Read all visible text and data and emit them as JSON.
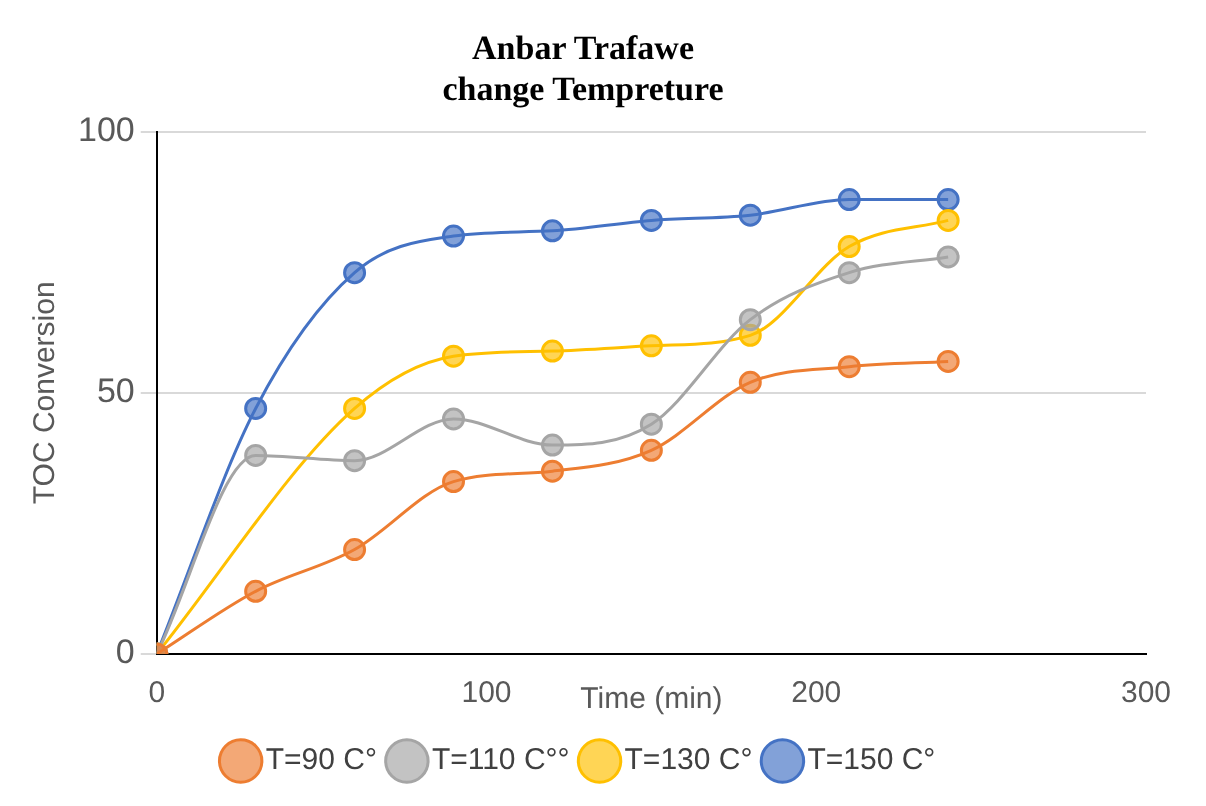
{
  "chart_data": {
    "type": "line",
    "title": "Anbar Trafawe\nchange Tempreture",
    "xlabel": "Time (min)",
    "ylabel": "TOC Conversion",
    "x": [
      0,
      30,
      60,
      90,
      120,
      150,
      180,
      210,
      240
    ],
    "xlim": [
      0,
      300
    ],
    "xticks": [
      0,
      100,
      200,
      300
    ],
    "ylim": [
      0,
      100
    ],
    "yticks": [
      0,
      50,
      100
    ],
    "grid": "y",
    "legend": "bottom",
    "marker": "circle",
    "series": [
      {
        "name": "T=90 C°",
        "color": "#ed7d31",
        "values": [
          0,
          12,
          20,
          33,
          35,
          39,
          52,
          55,
          56
        ]
      },
      {
        "name": "T=110 C°°",
        "color": "#a5a5a5",
        "values": [
          0,
          38,
          37,
          45,
          40,
          44,
          64,
          73,
          76
        ]
      },
      {
        "name": "T=130 C°",
        "color": "#ffc000",
        "values": [
          0,
          null,
          47,
          57,
          58,
          59,
          61,
          78,
          83
        ]
      },
      {
        "name": "T=150 C°",
        "color": "#4472c4",
        "values": [
          0,
          47,
          73,
          80,
          81,
          83,
          84,
          87,
          87
        ]
      }
    ]
  }
}
